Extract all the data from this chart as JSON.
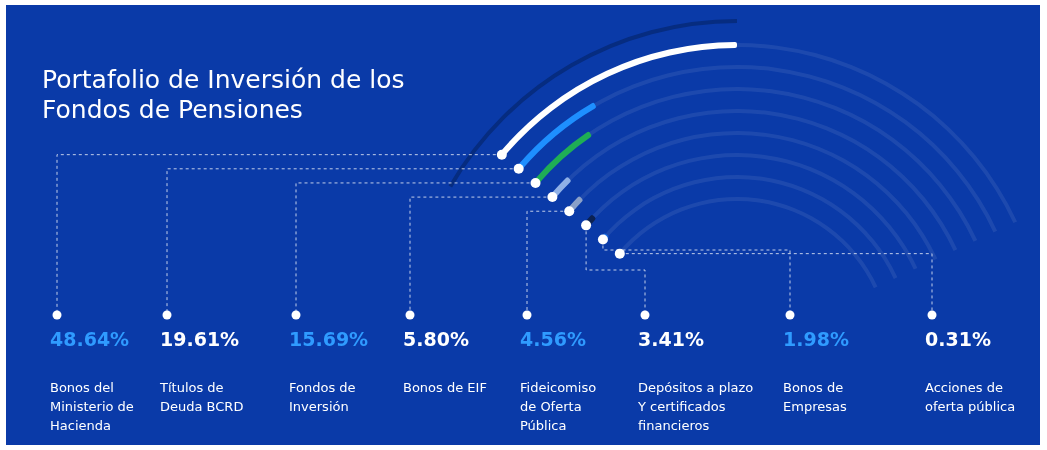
{
  "chart_data": {
    "type": "other",
    "title": "Portafolio de Inversión de los Fondos de Pensiones",
    "categories": [
      "Bonos del Ministerio de Hacienda",
      "Títulos de Deuda BCRD",
      "Fondos de Inversión",
      "Bonos de EIF",
      "Fideicomiso de Oferta Pública",
      "Depósitos a plazo Y certificados financieros",
      "Bonos de Empresas",
      "Acciones de oferta pública"
    ],
    "values": [
      48.64,
      19.61,
      15.69,
      5.8,
      4.56,
      3.41,
      1.98,
      0.31
    ],
    "value_labels": [
      "48.64%",
      "19.61%",
      "15.69%",
      "5.80%",
      "4.56%",
      "3.41%",
      "1.98%",
      "0.31%"
    ],
    "colors": [
      "#ffffff",
      "#1e8fff",
      "#1fae55",
      "#8fb0e6",
      "#8aa0c8",
      "#0b2152",
      "#1a6be0",
      "#1a6be0"
    ]
  }
}
